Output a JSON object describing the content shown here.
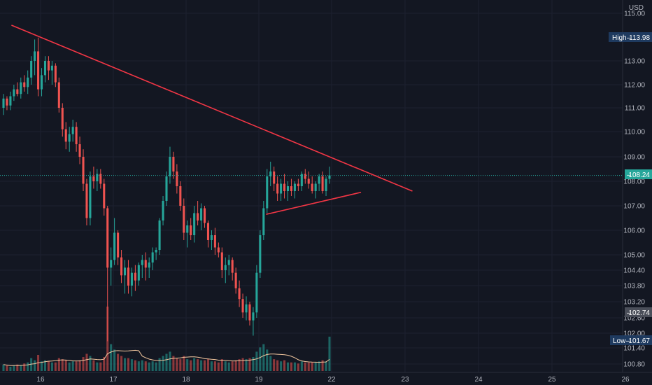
{
  "chart_data": {
    "type": "candlestick",
    "currency_label": "USD",
    "colors": {
      "background": "#131722",
      "up": "#26a69a",
      "down": "#ef5350",
      "trendline": "#f23645",
      "ma": "#f5c9a0",
      "last_price_tag": "#26a69a",
      "hl_tag": "#1e3a5f",
      "gray_tag": "#4a4e59"
    },
    "price_ticks": [
      "115.00",
      "113.00",
      "112.00",
      "111.00",
      "110.00",
      "109.00",
      "108.00",
      "107.00",
      "106.00",
      "105.00",
      "104.40",
      "103.80",
      "103.20",
      "102.60",
      "102.00",
      "101.40",
      "100.80"
    ],
    "date_ticks": [
      "16",
      "17",
      "18",
      "19",
      "22",
      "23",
      "24",
      "25",
      "26"
    ],
    "high": {
      "label": "High",
      "value": "113.98"
    },
    "low": {
      "label": "Low",
      "value": "101.67"
    },
    "last_price": "108.24",
    "marker_price": "102.74",
    "trendlines": [
      {
        "from": [
          "15.6",
          "114.5"
        ],
        "to": [
          "23.1",
          "107.6"
        ]
      },
      {
        "from": [
          "19.3",
          "106.65"
        ],
        "to": [
          "22.4",
          "107.55"
        ]
      }
    ],
    "candles": [
      [
        111.0,
        111.6,
        110.7,
        111.4,
        6
      ],
      [
        111.4,
        111.5,
        110.9,
        111.1,
        5
      ],
      [
        111.1,
        111.7,
        110.9,
        111.5,
        4
      ],
      [
        111.5,
        112.0,
        111.3,
        111.8,
        5
      ],
      [
        111.8,
        112.1,
        111.5,
        111.6,
        6
      ],
      [
        111.6,
        112.3,
        111.4,
        112.1,
        5
      ],
      [
        112.1,
        112.4,
        111.7,
        111.9,
        7
      ],
      [
        111.9,
        112.6,
        111.6,
        112.3,
        8
      ],
      [
        112.3,
        113.2,
        112.0,
        113.0,
        12
      ],
      [
        113.0,
        113.9,
        112.4,
        113.4,
        10
      ],
      [
        113.4,
        113.98,
        111.5,
        111.8,
        15
      ],
      [
        111.8,
        112.7,
        111.5,
        112.4,
        9
      ],
      [
        112.4,
        113.2,
        112.1,
        113.0,
        10
      ],
      [
        113.0,
        113.2,
        112.2,
        112.6,
        9
      ],
      [
        112.6,
        113.0,
        112.0,
        112.8,
        8
      ],
      [
        112.8,
        112.9,
        111.9,
        112.1,
        8
      ],
      [
        112.1,
        112.3,
        110.8,
        111.0,
        12
      ],
      [
        111.0,
        111.2,
        109.8,
        110.1,
        11
      ],
      [
        110.1,
        110.4,
        109.3,
        109.6,
        10
      ],
      [
        109.6,
        110.2,
        109.2,
        109.9,
        8
      ],
      [
        109.9,
        110.5,
        109.6,
        110.2,
        9
      ],
      [
        110.2,
        110.4,
        109.2,
        109.5,
        9
      ],
      [
        109.5,
        109.8,
        108.7,
        109.0,
        10
      ],
      [
        109.0,
        109.3,
        107.6,
        107.9,
        13
      ],
      [
        107.9,
        108.1,
        106.2,
        106.5,
        16
      ],
      [
        106.5,
        108.4,
        106.2,
        108.2,
        14
      ],
      [
        108.2,
        108.6,
        107.7,
        108.0,
        10
      ],
      [
        108.0,
        108.5,
        107.6,
        108.3,
        8
      ],
      [
        108.3,
        108.5,
        107.7,
        107.9,
        8
      ],
      [
        107.9,
        108.1,
        106.6,
        106.9,
        13
      ],
      [
        106.9,
        107.0,
        101.67,
        104.5,
        60
      ],
      [
        104.5,
        105.3,
        103.8,
        104.8,
        25
      ],
      [
        104.8,
        106.5,
        104.6,
        105.9,
        20
      ],
      [
        105.9,
        106.0,
        104.6,
        104.9,
        16
      ],
      [
        104.9,
        105.2,
        103.9,
        104.2,
        14
      ],
      [
        104.2,
        104.8,
        103.5,
        104.5,
        12
      ],
      [
        104.5,
        104.8,
        103.5,
        103.8,
        12
      ],
      [
        103.8,
        104.5,
        103.4,
        104.3,
        11
      ],
      [
        104.3,
        104.6,
        103.6,
        104.0,
        10
      ],
      [
        104.0,
        104.7,
        103.8,
        104.6,
        9
      ],
      [
        104.6,
        105.0,
        104.1,
        104.8,
        10
      ],
      [
        104.8,
        105.1,
        104.0,
        104.5,
        9
      ],
      [
        104.5,
        104.9,
        104.1,
        104.7,
        8
      ],
      [
        104.7,
        105.3,
        104.4,
        105.1,
        9
      ],
      [
        105.1,
        105.3,
        104.8,
        105.2,
        8
      ],
      [
        105.2,
        106.5,
        105.0,
        106.4,
        12
      ],
      [
        106.4,
        107.4,
        106.2,
        107.2,
        14
      ],
      [
        107.2,
        108.4,
        107.0,
        108.2,
        16
      ],
      [
        108.2,
        109.4,
        107.9,
        109.0,
        18
      ],
      [
        109.0,
        109.2,
        108.1,
        108.4,
        14
      ],
      [
        108.4,
        108.7,
        107.5,
        107.8,
        12
      ],
      [
        107.8,
        108.0,
        106.8,
        107.0,
        11
      ],
      [
        107.0,
        107.3,
        105.6,
        105.9,
        14
      ],
      [
        105.9,
        106.4,
        105.3,
        106.2,
        11
      ],
      [
        106.2,
        106.5,
        105.6,
        105.8,
        10
      ],
      [
        105.8,
        107.0,
        105.5,
        106.7,
        12
      ],
      [
        106.7,
        107.2,
        106.2,
        106.4,
        11
      ],
      [
        106.4,
        107.1,
        106.0,
        106.9,
        10
      ],
      [
        106.9,
        107.0,
        106.1,
        106.3,
        10
      ],
      [
        106.3,
        106.4,
        105.3,
        105.6,
        11
      ],
      [
        105.6,
        106.0,
        105.2,
        105.8,
        9
      ],
      [
        105.8,
        106.1,
        105.0,
        105.3,
        9
      ],
      [
        105.3,
        105.5,
        104.9,
        105.1,
        8
      ],
      [
        105.1,
        105.3,
        104.1,
        104.4,
        11
      ],
      [
        104.4,
        104.9,
        103.9,
        104.6,
        9
      ],
      [
        104.6,
        105.0,
        104.2,
        104.8,
        8
      ],
      [
        104.8,
        104.9,
        104.0,
        104.3,
        9
      ],
      [
        104.3,
        104.5,
        103.5,
        103.7,
        10
      ],
      [
        103.7,
        104.0,
        103.0,
        103.3,
        11
      ],
      [
        103.3,
        103.5,
        102.6,
        102.8,
        12
      ],
      [
        102.8,
        103.4,
        102.5,
        103.1,
        11
      ],
      [
        103.1,
        103.2,
        102.3,
        102.5,
        12
      ],
      [
        102.5,
        103.0,
        101.9,
        102.8,
        13
      ],
      [
        102.8,
        104.6,
        102.6,
        104.3,
        18
      ],
      [
        104.3,
        106.0,
        104.1,
        105.8,
        22
      ],
      [
        105.8,
        107.2,
        105.6,
        106.9,
        25
      ],
      [
        106.9,
        108.5,
        106.7,
        108.2,
        20
      ],
      [
        108.2,
        108.8,
        107.8,
        108.4,
        14
      ],
      [
        108.4,
        108.6,
        107.6,
        107.9,
        11
      ],
      [
        107.9,
        108.2,
        107.2,
        107.5,
        10
      ],
      [
        107.5,
        108.1,
        107.2,
        107.9,
        9
      ],
      [
        107.9,
        108.3,
        107.3,
        107.6,
        10
      ],
      [
        107.6,
        108.0,
        107.2,
        107.8,
        8
      ],
      [
        107.8,
        108.1,
        107.4,
        107.6,
        8
      ],
      [
        107.6,
        108.0,
        107.3,
        107.9,
        8
      ],
      [
        107.9,
        108.1,
        107.6,
        107.8,
        7
      ],
      [
        107.8,
        108.4,
        107.6,
        108.3,
        9
      ],
      [
        108.3,
        108.5,
        107.9,
        108.1,
        8
      ],
      [
        108.1,
        108.4,
        107.7,
        107.9,
        8
      ],
      [
        107.9,
        108.2,
        107.5,
        107.6,
        8
      ],
      [
        107.6,
        108.0,
        107.3,
        107.9,
        8
      ],
      [
        107.9,
        108.3,
        107.6,
        108.2,
        9
      ],
      [
        108.2,
        108.4,
        107.5,
        107.6,
        10
      ],
      [
        107.6,
        108.2,
        107.4,
        108.1,
        9
      ],
      [
        108.1,
        108.6,
        107.9,
        108.24,
        32
      ]
    ]
  }
}
